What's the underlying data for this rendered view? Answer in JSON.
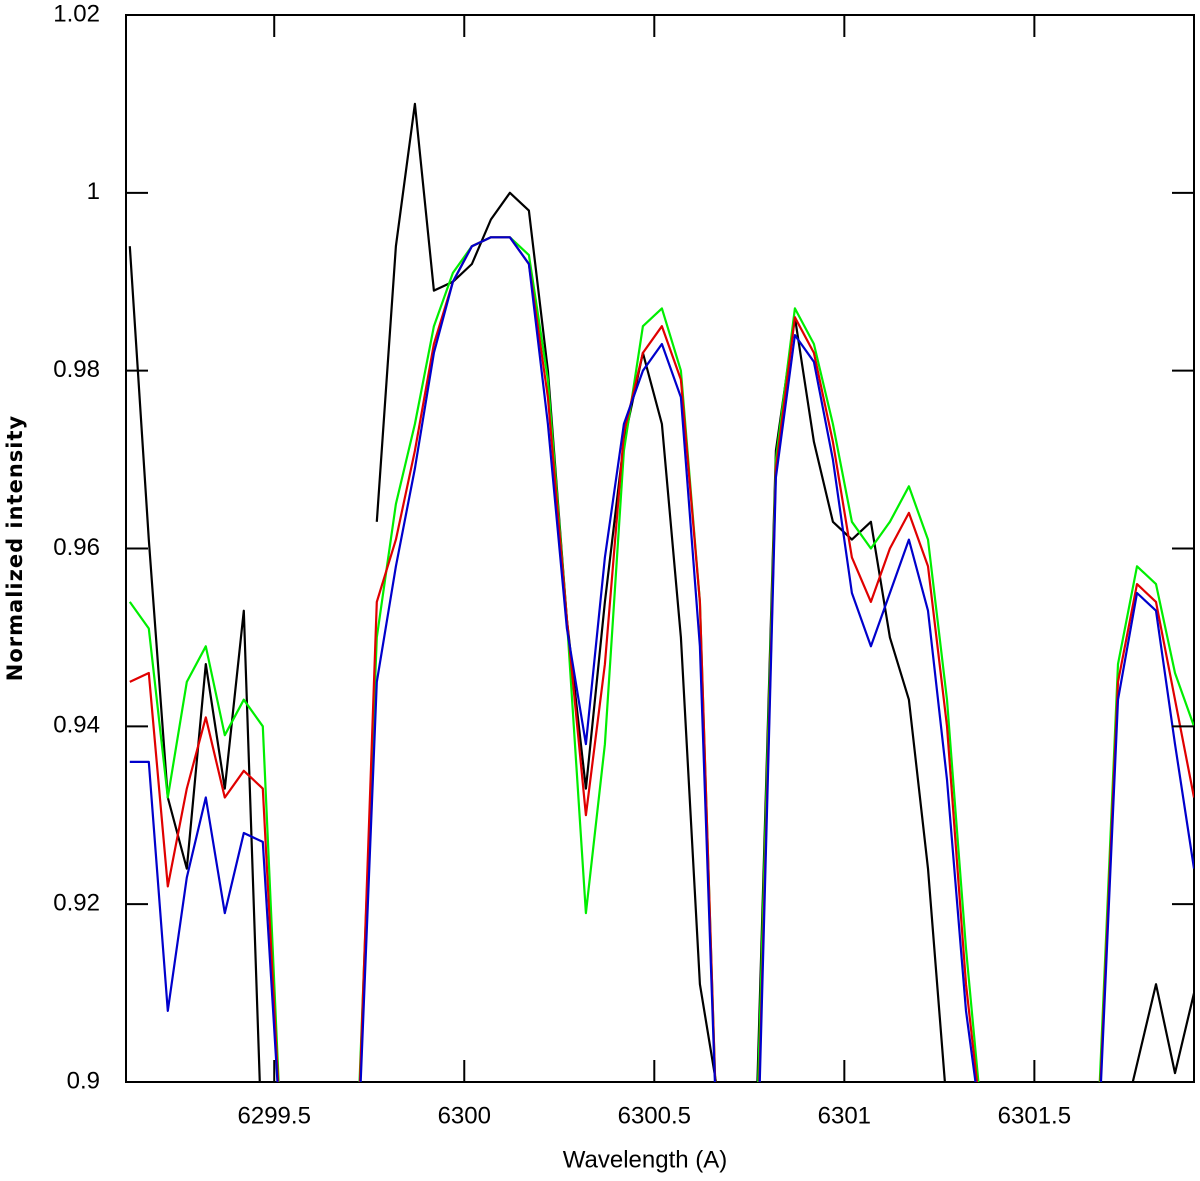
{
  "chart_data": {
    "type": "line",
    "xlabel": "Wavelength (A)",
    "ylabel": "Normalized intensity",
    "x": [
      6299.12,
      6299.17,
      6299.22,
      6299.27,
      6299.32,
      6299.37,
      6299.42,
      6299.47,
      6299.52,
      6299.57,
      6299.62,
      6299.67,
      6299.72,
      6299.77,
      6299.82,
      6299.87,
      6299.92,
      6299.97,
      6300.02,
      6300.07,
      6300.12,
      6300.17,
      6300.22,
      6300.27,
      6300.32,
      6300.37,
      6300.42,
      6300.47,
      6300.52,
      6300.57,
      6300.62,
      6300.67,
      6300.72,
      6300.77,
      6300.82,
      6300.87,
      6300.92,
      6300.97,
      6301.02,
      6301.07,
      6301.12,
      6301.17,
      6301.22,
      6301.27,
      6301.32,
      6301.37,
      6301.42,
      6301.47,
      6301.52,
      6301.57,
      6301.62,
      6301.67,
      6301.72,
      6301.77,
      6301.82,
      6301.87,
      6301.92
    ],
    "series": [
      {
        "color": "#000000",
        "values": [
          0.994,
          0.961,
          0.932,
          0.924,
          0.947,
          0.933,
          0.953,
          0.89,
          null,
          null,
          null,
          null,
          null,
          0.963,
          0.994,
          1.01,
          0.989,
          0.99,
          0.992,
          0.997,
          1.0,
          0.998,
          0.98,
          0.952,
          0.933,
          0.954,
          0.972,
          0.982,
          0.974,
          0.95,
          0.911,
          0.898,
          null,
          0.898,
          0.971,
          0.986,
          0.972,
          0.963,
          0.961,
          0.963,
          0.95,
          0.943,
          0.924,
          0.897,
          null,
          null,
          null,
          null,
          null,
          null,
          null,
          null,
          0.893,
          0.902,
          0.911,
          0.901,
          0.91
        ]
      },
      {
        "color": "#00ee00",
        "values": [
          0.954,
          0.951,
          0.932,
          0.945,
          0.949,
          0.939,
          0.943,
          0.94,
          0.892,
          null,
          null,
          null,
          0.895,
          0.95,
          0.965,
          0.974,
          0.985,
          0.991,
          0.994,
          0.995,
          0.995,
          0.993,
          0.979,
          0.952,
          0.919,
          0.938,
          0.971,
          0.985,
          0.987,
          0.98,
          0.954,
          0.887,
          null,
          0.895,
          0.97,
          0.987,
          0.983,
          0.974,
          0.963,
          0.96,
          0.963,
          0.967,
          0.961,
          0.943,
          0.915,
          0.892,
          null,
          null,
          null,
          null,
          null,
          0.898,
          0.947,
          0.958,
          0.956,
          0.946,
          0.94
        ]
      },
      {
        "color": "#e00000",
        "values": [
          0.945,
          0.946,
          0.922,
          0.933,
          0.941,
          0.932,
          0.935,
          0.933,
          0.892,
          null,
          null,
          null,
          0.893,
          0.954,
          0.961,
          0.971,
          0.983,
          0.99,
          0.994,
          0.995,
          0.995,
          0.992,
          0.977,
          0.952,
          0.93,
          0.947,
          0.973,
          0.982,
          0.985,
          0.979,
          0.954,
          0.887,
          null,
          0.89,
          0.969,
          0.986,
          0.982,
          0.972,
          0.959,
          0.954,
          0.96,
          0.964,
          0.958,
          0.94,
          0.911,
          0.892,
          null,
          null,
          null,
          null,
          null,
          0.896,
          0.945,
          0.956,
          0.954,
          0.943,
          0.932
        ]
      },
      {
        "color": "#0000cc",
        "values": [
          0.936,
          0.936,
          0.908,
          0.923,
          0.932,
          0.919,
          0.928,
          0.927,
          0.892,
          null,
          null,
          null,
          0.892,
          0.945,
          0.958,
          0.969,
          0.982,
          0.99,
          0.994,
          0.995,
          0.995,
          0.992,
          0.974,
          0.951,
          0.938,
          0.959,
          0.974,
          0.98,
          0.983,
          0.977,
          0.949,
          0.887,
          null,
          0.888,
          0.968,
          0.984,
          0.981,
          0.97,
          0.955,
          0.949,
          0.955,
          0.961,
          0.953,
          0.934,
          0.908,
          0.892,
          null,
          null,
          null,
          null,
          null,
          0.895,
          0.943,
          0.955,
          0.953,
          0.938,
          0.924
        ]
      }
    ],
    "xlim": [
      6299.11,
      6301.92
    ],
    "ylim": [
      0.9,
      1.02
    ],
    "xticks": [
      6299.5,
      6300,
      6300.5,
      6301,
      6301.5
    ],
    "yticks": [
      0.9,
      0.92,
      0.94,
      0.96,
      0.98,
      1,
      1.02
    ]
  }
}
